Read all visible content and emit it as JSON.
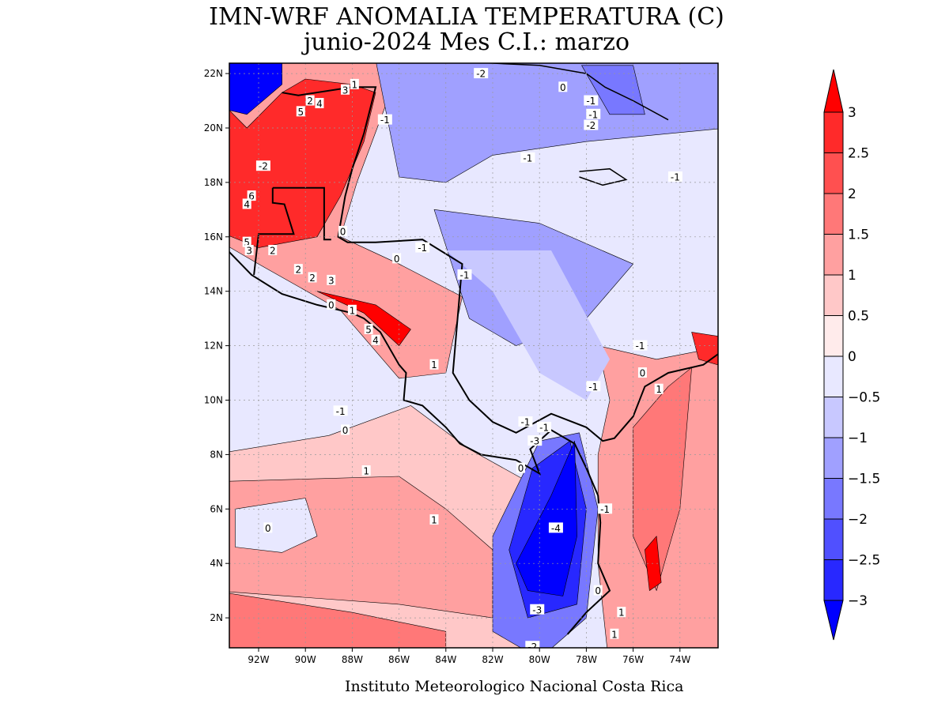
{
  "title_line1": "IMN-WRF  ANOMALIA TEMPERATURA (C)",
  "title_line2": "junio-2024 Mes C.I.: marzo",
  "credit": "Instituto Meteorologico Nacional Costa Rica",
  "chart_data": {
    "type": "heatmap",
    "variable": "Temperature anomaly (C)",
    "lon_ticks": [
      -92,
      -90,
      -88,
      -86,
      -84,
      -82,
      -80,
      -78,
      -76,
      -74
    ],
    "lon_tick_labels": [
      "92W",
      "90W",
      "88W",
      "86W",
      "84W",
      "82W",
      "80W",
      "78W",
      "76W",
      "74W"
    ],
    "lat_ticks": [
      22,
      20,
      18,
      16,
      14,
      12,
      10,
      8,
      6,
      4,
      2
    ],
    "lat_tick_labels": [
      "22N",
      "20N",
      "18N",
      "16N",
      "14N",
      "12N",
      "10N",
      "8N",
      "6N",
      "4N",
      "2N"
    ],
    "colorbar": {
      "levels": [
        -3,
        -2.5,
        -2,
        -1.5,
        -1,
        -0.5,
        0,
        0.5,
        1,
        1.5,
        2,
        2.5,
        3
      ],
      "level_labels": [
        "-3",
        "-2.5",
        "-2",
        "-1.5",
        "-1",
        "-0.5",
        "0",
        "0.5",
        "1",
        "1.5",
        "2",
        "2.5",
        "3"
      ],
      "colors": [
        "#0000ff",
        "#2828ff",
        "#5050ff",
        "#7878ff",
        "#a0a0ff",
        "#c8c8ff",
        "#e8e8ff",
        "#ffebeb",
        "#ffc8c8",
        "#ffa0a0",
        "#ff7878",
        "#ff5050",
        "#ff2a2a",
        "#ff0000"
      ]
    },
    "contour_labels": [
      "-2",
      "0",
      "-1",
      "-1",
      "-2",
      "1",
      "3",
      "2",
      "4",
      "5",
      "-1",
      "-1",
      "-2",
      "-1",
      "6",
      "4",
      "0",
      "5",
      "3",
      "2",
      "-1",
      "0",
      "-1",
      "2",
      "2",
      "3",
      "0",
      "1",
      "5",
      "4",
      "-1",
      "1",
      "0",
      "1",
      "-1",
      "0",
      "-1",
      "-1",
      "-3",
      "0",
      "1",
      "-1",
      "-4",
      "0",
      "1",
      "-3",
      "-2",
      "1",
      "1",
      "0",
      "-1"
    ]
  }
}
